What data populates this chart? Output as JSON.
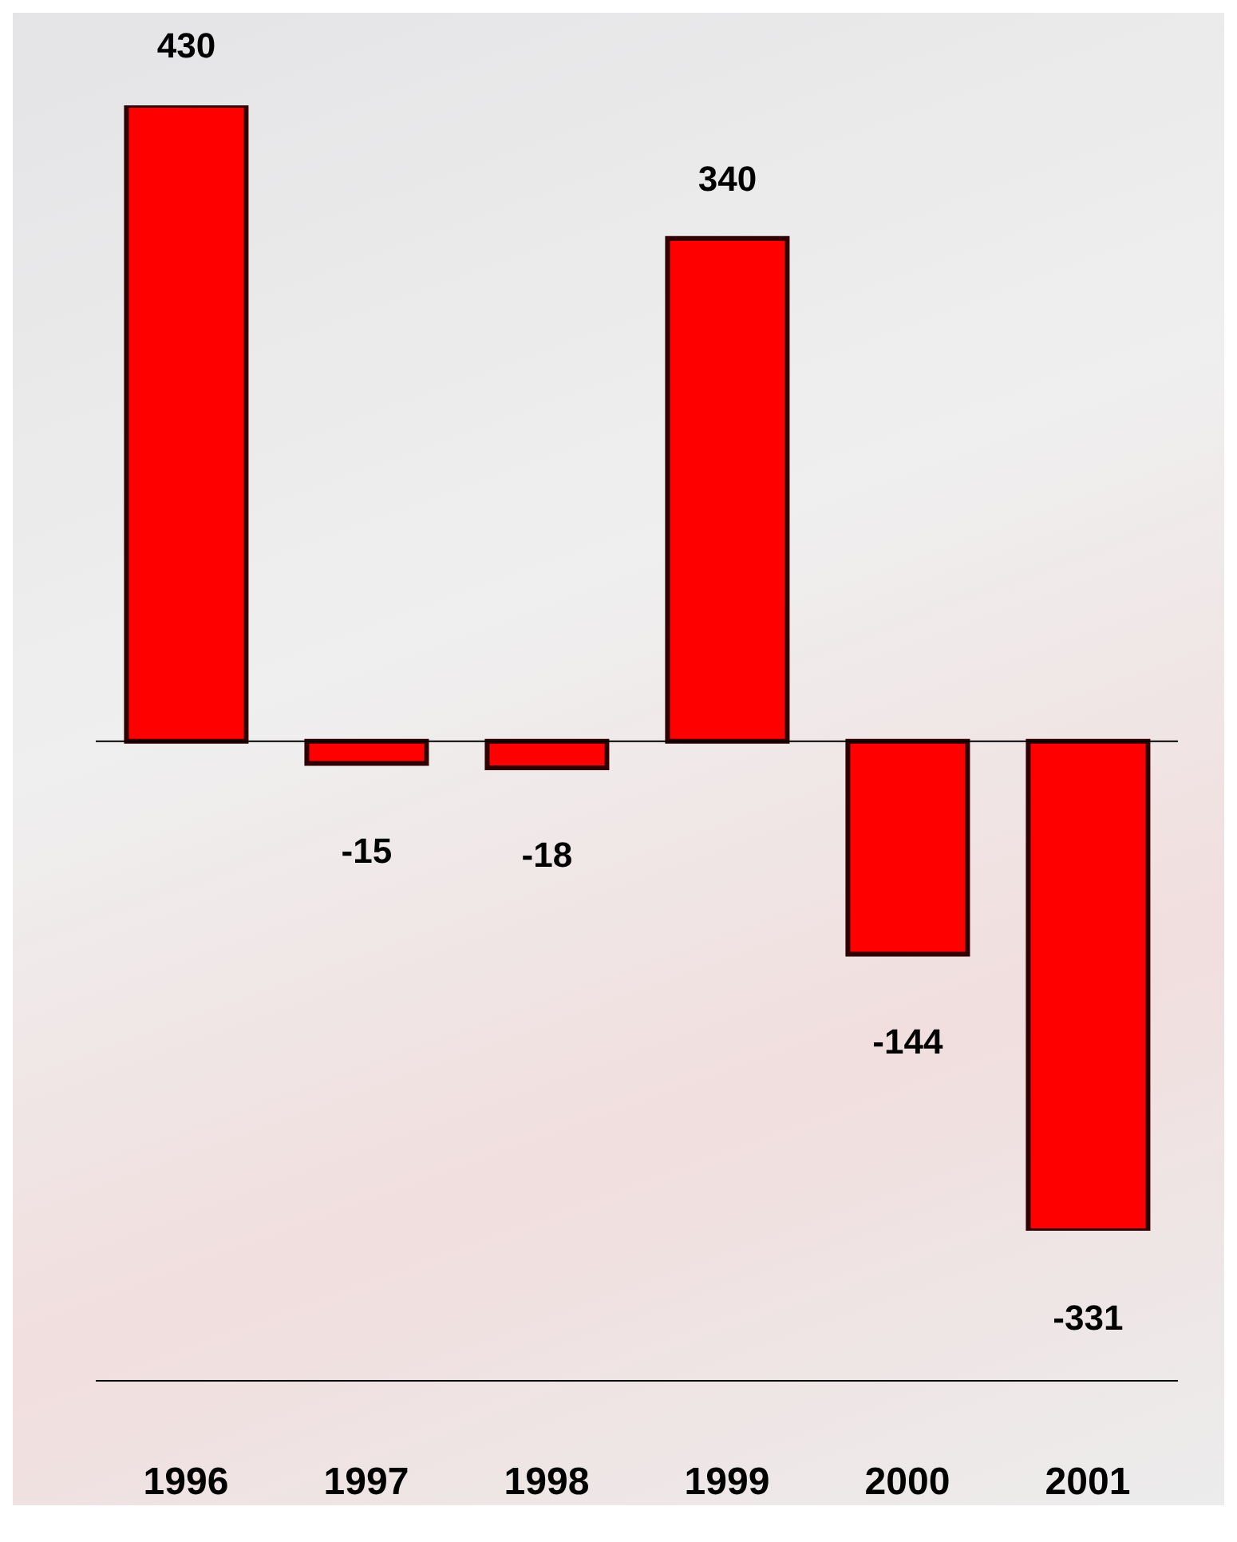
{
  "chart_data": {
    "type": "bar",
    "categories": [
      "1996",
      "1997",
      "1998",
      "1999",
      "2000",
      "2001"
    ],
    "values": [
      430,
      -15,
      -18,
      340,
      -144,
      -331
    ],
    "color": "#ff0000",
    "data_labels": true
  }
}
